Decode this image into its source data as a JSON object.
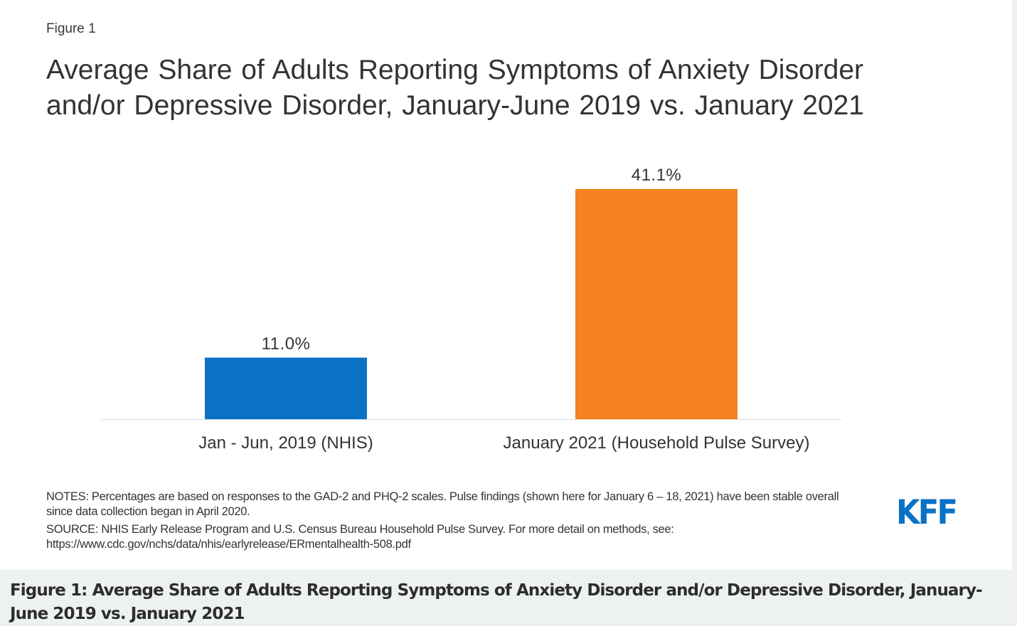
{
  "figure": {
    "label": "Figure 1",
    "title": "Average Share of Adults Reporting Symptoms of Anxiety Disorder and/or Depressive Disorder, January-June 2019 vs. January 2021",
    "notes": "NOTES: Percentages are based on responses to the GAD-2 and PHQ-2 scales. Pulse findings (shown here for January 6 – 18, 2021) have been stable overall since data collection began in April 2020.",
    "source_line1": "SOURCE: NHIS Early Release Program and U.S. Census Bureau Household Pulse Survey.  For more detail on methods, see:",
    "source_line2": "https://www.cdc.gov/nchs/data/nhis/earlyrelease/ERmentalhealth-508.pdf",
    "logo": "KFF",
    "caption": "Figure 1: Average Share of Adults Reporting Symptoms of Anxiety Disorder and/or Depressive Disorder, January-June 2019 vs. January 2021"
  },
  "colors": {
    "blue": "#0a72c6",
    "orange": "#f5821f",
    "text": "#333333",
    "axis": "#e6e6e6"
  },
  "chart_data": {
    "type": "bar",
    "title": "Average Share of Adults Reporting Symptoms of Anxiety Disorder and/or Depressive Disorder, January-June 2019 vs. January 2021",
    "categories": [
      "Jan - Jun, 2019 (NHIS)",
      "January 2021 (Household Pulse Survey)"
    ],
    "values": [
      11.0,
      41.1
    ],
    "data_labels": [
      "11.0%",
      "41.1%"
    ],
    "bar_colors": [
      "#0a72c6",
      "#f5821f"
    ],
    "xlabel": "",
    "ylabel": "",
    "ylim": [
      0,
      41.1
    ],
    "grid": false,
    "legend": "none",
    "y_axis_visible": false
  }
}
